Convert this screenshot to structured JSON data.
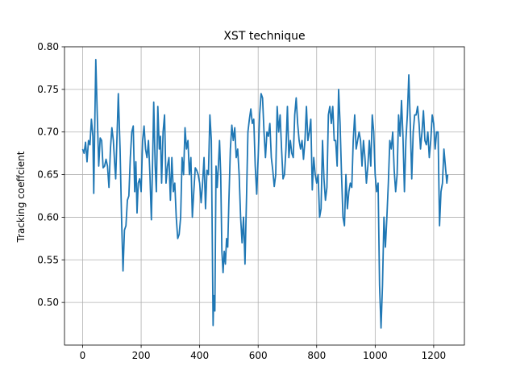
{
  "chart_data": {
    "type": "line",
    "title": "XST technique",
    "y_label": "Tracking coeffcient",
    "color": "#1f77b4",
    "grid": true,
    "xlim": [
      -62,
      1305
    ],
    "ylim": [
      0.45,
      0.8
    ],
    "xticks": [
      0,
      200,
      400,
      600,
      800,
      1000,
      1200
    ],
    "yticks": [
      {
        "value": 0.5,
        "label": "0.50"
      },
      0.55,
      {
        "value": 0.6,
        "label": "0.60"
      },
      0.65,
      {
        "value": 0.7,
        "label": "0.70"
      },
      0.75,
      {
        "value": 0.8,
        "label": "0.80"
      }
    ],
    "x": [
      0,
      5,
      10,
      15,
      20,
      25,
      30,
      35,
      38,
      42,
      45,
      50,
      55,
      60,
      65,
      70,
      75,
      80,
      85,
      90,
      95,
      100,
      105,
      110,
      113,
      118,
      122,
      128,
      133,
      138,
      143,
      148,
      153,
      158,
      163,
      168,
      173,
      178,
      182,
      186,
      190,
      195,
      200,
      205,
      210,
      215,
      220,
      225,
      230,
      235,
      240,
      243,
      248,
      252,
      257,
      262,
      266,
      270,
      275,
      280,
      285,
      290,
      295,
      300,
      305,
      310,
      315,
      320,
      325,
      330,
      335,
      340,
      345,
      350,
      355,
      360,
      365,
      370,
      375,
      380,
      385,
      390,
      395,
      400,
      405,
      410,
      415,
      420,
      425,
      430,
      435,
      440,
      443,
      446,
      448,
      452,
      456,
      460,
      464,
      468,
      472,
      476,
      480,
      484,
      488,
      492,
      496,
      500,
      505,
      510,
      515,
      520,
      525,
      530,
      535,
      540,
      545,
      550,
      555,
      560,
      565,
      570,
      575,
      580,
      585,
      590,
      595,
      600,
      605,
      610,
      615,
      620,
      625,
      630,
      635,
      640,
      645,
      650,
      655,
      660,
      665,
      670,
      675,
      680,
      685,
      690,
      695,
      700,
      705,
      710,
      715,
      720,
      725,
      730,
      735,
      740,
      745,
      750,
      755,
      760,
      765,
      770,
      775,
      780,
      785,
      790,
      795,
      800,
      805,
      810,
      815,
      820,
      825,
      830,
      835,
      840,
      845,
      850,
      855,
      860,
      865,
      870,
      875,
      880,
      885,
      890,
      895,
      900,
      905,
      910,
      915,
      920,
      925,
      930,
      935,
      940,
      945,
      950,
      955,
      960,
      965,
      970,
      975,
      980,
      985,
      990,
      995,
      1000,
      1005,
      1010,
      1015,
      1020,
      1025,
      1030,
      1035,
      1040,
      1045,
      1050,
      1055,
      1060,
      1065,
      1070,
      1075,
      1080,
      1085,
      1090,
      1095,
      1100,
      1105,
      1110,
      1115,
      1120,
      1125,
      1130,
      1135,
      1140,
      1145,
      1150,
      1155,
      1160,
      1165,
      1170,
      1175,
      1180,
      1185,
      1190,
      1195,
      1200,
      1205,
      1210,
      1215,
      1220,
      1225,
      1230,
      1235,
      1240,
      1245,
      1248
    ],
    "values": [
      0.68,
      0.675,
      0.688,
      0.665,
      0.69,
      0.685,
      0.715,
      0.695,
      0.628,
      0.72,
      0.785,
      0.72,
      0.66,
      0.693,
      0.69,
      0.658,
      0.66,
      0.668,
      0.66,
      0.635,
      0.68,
      0.705,
      0.69,
      0.66,
      0.645,
      0.7,
      0.745,
      0.68,
      0.6,
      0.537,
      0.585,
      0.59,
      0.62,
      0.625,
      0.67,
      0.7,
      0.707,
      0.63,
      0.665,
      0.605,
      0.64,
      0.645,
      0.63,
      0.69,
      0.707,
      0.68,
      0.67,
      0.69,
      0.65,
      0.597,
      0.68,
      0.735,
      0.66,
      0.63,
      0.73,
      0.68,
      0.695,
      0.64,
      0.7,
      0.72,
      0.64,
      0.66,
      0.67,
      0.62,
      0.67,
      0.63,
      0.64,
      0.6,
      0.575,
      0.58,
      0.6,
      0.67,
      0.65,
      0.705,
      0.68,
      0.69,
      0.65,
      0.67,
      0.6,
      0.63,
      0.658,
      0.655,
      0.65,
      0.64,
      0.617,
      0.64,
      0.67,
      0.61,
      0.655,
      0.65,
      0.72,
      0.69,
      0.58,
      0.473,
      0.508,
      0.49,
      0.66,
      0.635,
      0.66,
      0.69,
      0.65,
      0.56,
      0.535,
      0.56,
      0.545,
      0.575,
      0.565,
      0.62,
      0.68,
      0.708,
      0.69,
      0.705,
      0.67,
      0.68,
      0.65,
      0.6,
      0.57,
      0.6,
      0.545,
      0.62,
      0.7,
      0.715,
      0.727,
      0.71,
      0.715,
      0.66,
      0.627,
      0.67,
      0.72,
      0.745,
      0.74,
      0.7,
      0.67,
      0.7,
      0.695,
      0.71,
      0.67,
      0.655,
      0.636,
      0.65,
      0.73,
      0.7,
      0.72,
      0.68,
      0.645,
      0.65,
      0.68,
      0.73,
      0.67,
      0.69,
      0.675,
      0.67,
      0.72,
      0.74,
      0.71,
      0.69,
      0.68,
      0.69,
      0.668,
      0.69,
      0.73,
      0.69,
      0.7,
      0.715,
      0.632,
      0.67,
      0.65,
      0.64,
      0.65,
      0.6,
      0.61,
      0.69,
      0.645,
      0.62,
      0.635,
      0.72,
      0.73,
      0.71,
      0.73,
      0.69,
      0.69,
      0.66,
      0.75,
      0.71,
      0.65,
      0.6,
      0.59,
      0.65,
      0.61,
      0.63,
      0.64,
      0.635,
      0.69,
      0.72,
      0.68,
      0.69,
      0.7,
      0.69,
      0.66,
      0.69,
      0.67,
      0.64,
      0.66,
      0.69,
      0.66,
      0.72,
      0.7,
      0.65,
      0.63,
      0.64,
      0.52,
      0.47,
      0.52,
      0.6,
      0.565,
      0.6,
      0.64,
      0.69,
      0.68,
      0.7,
      0.655,
      0.63,
      0.65,
      0.72,
      0.695,
      0.737,
      0.695,
      0.63,
      0.69,
      0.72,
      0.767,
      0.71,
      0.645,
      0.7,
      0.72,
      0.72,
      0.73,
      0.71,
      0.68,
      0.7,
      0.725,
      0.69,
      0.685,
      0.7,
      0.67,
      0.69,
      0.72,
      0.71,
      0.68,
      0.7,
      0.7,
      0.59,
      0.63,
      0.64,
      0.68,
      0.66,
      0.64,
      0.65
    ]
  }
}
